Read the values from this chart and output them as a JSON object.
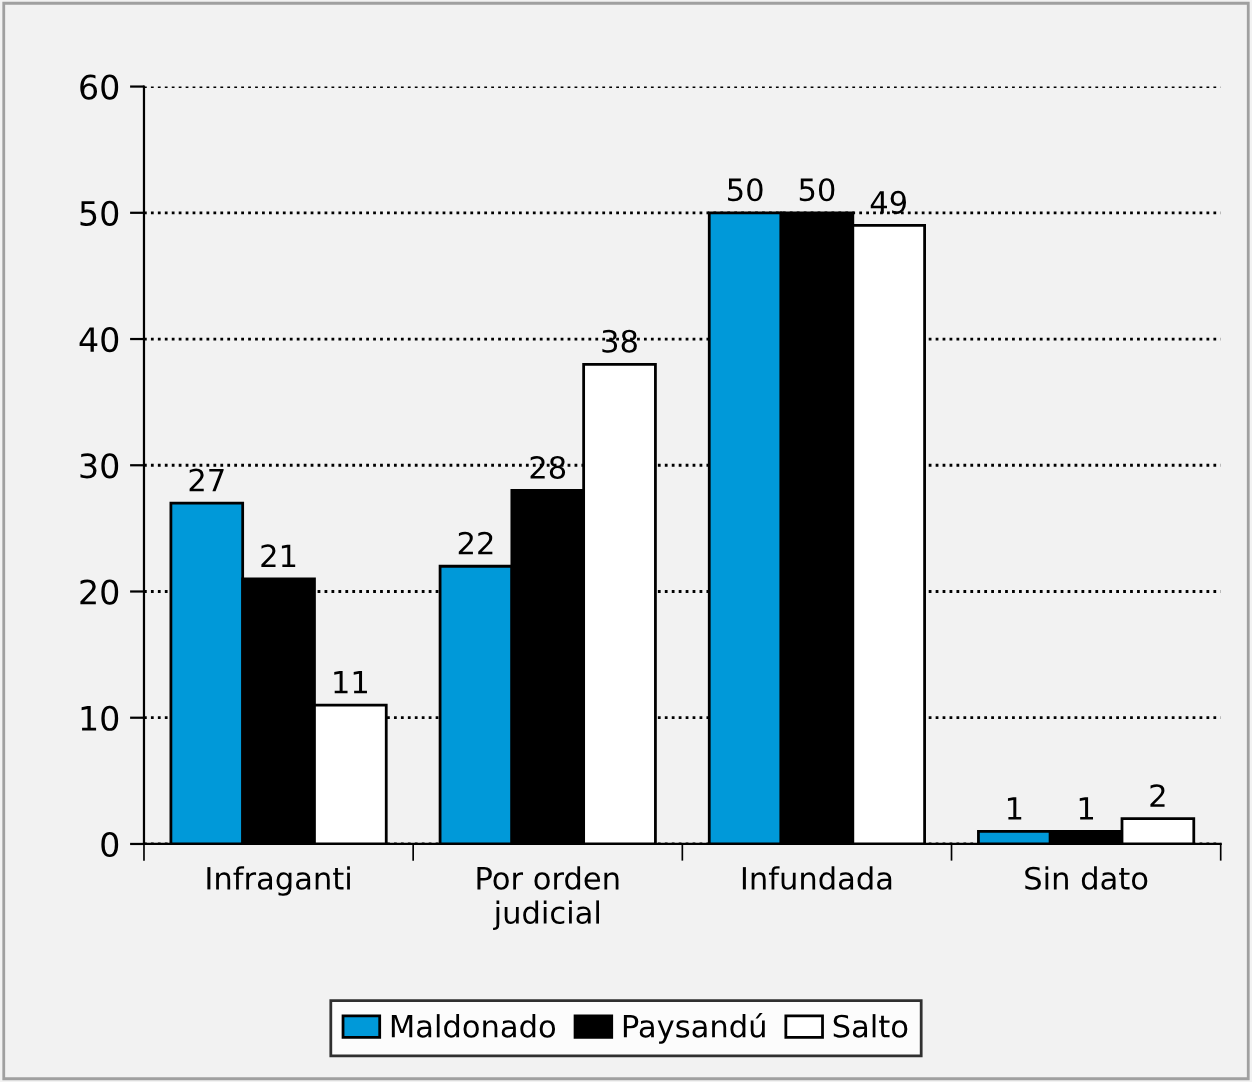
{
  "chart_data": {
    "type": "bar",
    "categories": [
      "Infraganti",
      "Por orden\njudicial",
      "Infundada",
      "Sin dato"
    ],
    "series": [
      {
        "name": "Maldonado",
        "color": "#0099d9",
        "values": [
          27,
          22,
          50,
          1
        ]
      },
      {
        "name": "Paysandú",
        "color": "#000000",
        "values": [
          21,
          28,
          50,
          1
        ]
      },
      {
        "name": "Salto",
        "color": "#ffffff",
        "values": [
          11,
          38,
          49,
          2
        ]
      }
    ],
    "ylim": [
      0,
      60
    ],
    "yticks": [
      0,
      10,
      20,
      30,
      40,
      50,
      60
    ],
    "grid": "y",
    "data_labels": true,
    "legend": "bottom"
  }
}
